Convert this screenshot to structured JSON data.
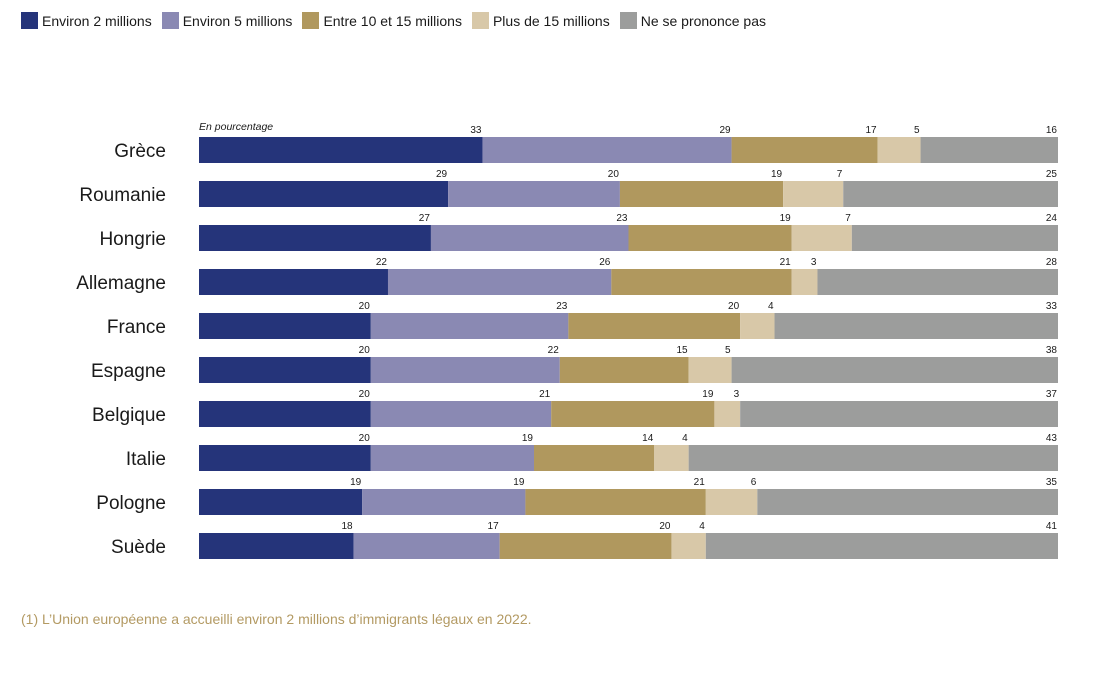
{
  "chart_data": {
    "type": "bar",
    "orientation": "horizontal",
    "stacked": true,
    "unit_label": "En pourcentage",
    "categories": [
      "Grèce",
      "Roumanie",
      "Hongrie",
      "Allemagne",
      "France",
      "Espagne",
      "Belgique",
      "Italie",
      "Pologne",
      "Suède"
    ],
    "series": [
      {
        "name": "Environ 2 millions",
        "color": "#25347a",
        "values": [
          33,
          29,
          27,
          22,
          20,
          20,
          20,
          20,
          19,
          18
        ]
      },
      {
        "name": "Environ 5 millions",
        "color": "#8a89b3",
        "values": [
          29,
          20,
          23,
          26,
          23,
          22,
          21,
          19,
          19,
          17
        ]
      },
      {
        "name": "Entre 10 et 15 millions",
        "color": "#b0985e",
        "values": [
          17,
          19,
          19,
          21,
          20,
          15,
          19,
          14,
          21,
          20
        ]
      },
      {
        "name": "Plus de 15 millions",
        "color": "#d8c8a8",
        "values": [
          5,
          7,
          7,
          3,
          4,
          5,
          3,
          4,
          6,
          4
        ]
      },
      {
        "name": "Ne se prononce pas",
        "color": "#9c9d9c",
        "values": [
          16,
          25,
          24,
          28,
          33,
          38,
          37,
          43,
          35,
          41
        ]
      }
    ],
    "xlim": [
      0,
      100
    ],
    "legend_position": "top-left",
    "grid": false,
    "title": "",
    "xlabel": "",
    "ylabel": ""
  },
  "footnote": "(1) L’Union européenne a accueilli environ 2 millions d’immigrants légaux en 2022."
}
